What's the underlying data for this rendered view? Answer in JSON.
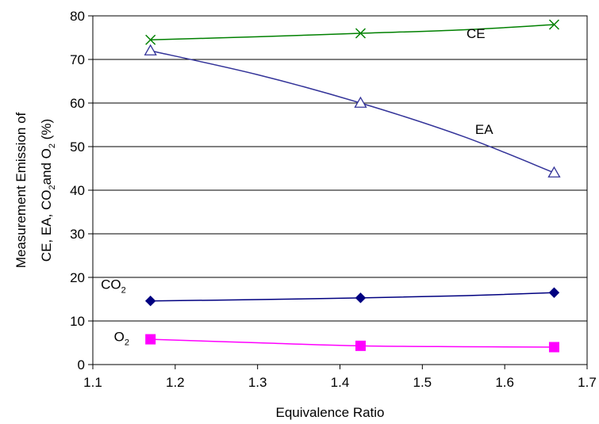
{
  "chart_data": {
    "type": "line",
    "xlabel": "Equivalence Ratio",
    "ylabel_line1": "Measurement Emission of",
    "ylabel_line2": {
      "pre": "CE, EA, CO",
      "sub1": "2",
      "mid": "and O",
      "sub2": "2",
      "post": " (%)"
    },
    "xlim": [
      1.1,
      1.7
    ],
    "ylim": [
      0,
      80
    ],
    "x_ticks": [
      "1.1",
      "1.2",
      "1.3",
      "1.4",
      "1.5",
      "1.6",
      "1.7"
    ],
    "y_ticks": [
      "0",
      "10",
      "20",
      "30",
      "40",
      "50",
      "60",
      "70",
      "80"
    ],
    "grid": "horizontal",
    "series": [
      {
        "key": "ce",
        "label": "CE",
        "sub": "",
        "color": "#008000",
        "marker": "x",
        "x": [
          1.17,
          1.425,
          1.66
        ],
        "y": [
          74.5,
          76,
          78
        ],
        "curve_x": [
          1.17,
          1.3,
          1.425,
          1.55,
          1.66
        ],
        "curve_y": [
          74.5,
          75.2,
          76,
          76.8,
          78
        ],
        "label_pos": [
          1.565,
          76
        ]
      },
      {
        "key": "ea",
        "label": "EA",
        "sub": "",
        "color": "#333399",
        "marker": "triangle",
        "x": [
          1.17,
          1.425,
          1.66
        ],
        "y": [
          72,
          60,
          44
        ],
        "curve_x": [
          1.17,
          1.3,
          1.425,
          1.55,
          1.66
        ],
        "curve_y": [
          72,
          66.5,
          60,
          52.3,
          44
        ],
        "label_pos": [
          1.575,
          54
        ]
      },
      {
        "key": "co2",
        "label": "CO",
        "sub": "2",
        "color": "#000080",
        "marker": "diamond",
        "x": [
          1.17,
          1.425,
          1.66
        ],
        "y": [
          14.6,
          15.3,
          16.5
        ],
        "curve_x": [
          1.17,
          1.3,
          1.425,
          1.55,
          1.66
        ],
        "curve_y": [
          14.6,
          14.9,
          15.3,
          15.8,
          16.5
        ],
        "label_pos": [
          1.125,
          18.5
        ]
      },
      {
        "key": "o2",
        "label": "O",
        "sub": "2",
        "color": "#FF00FF",
        "marker": "square",
        "x": [
          1.17,
          1.425,
          1.66
        ],
        "y": [
          5.8,
          4.3,
          4
        ],
        "curve_x": [
          1.17,
          1.3,
          1.425,
          1.55,
          1.66
        ],
        "curve_y": [
          5.8,
          5.0,
          4.3,
          4.1,
          4
        ],
        "label_pos": [
          1.135,
          6.5
        ]
      }
    ]
  }
}
